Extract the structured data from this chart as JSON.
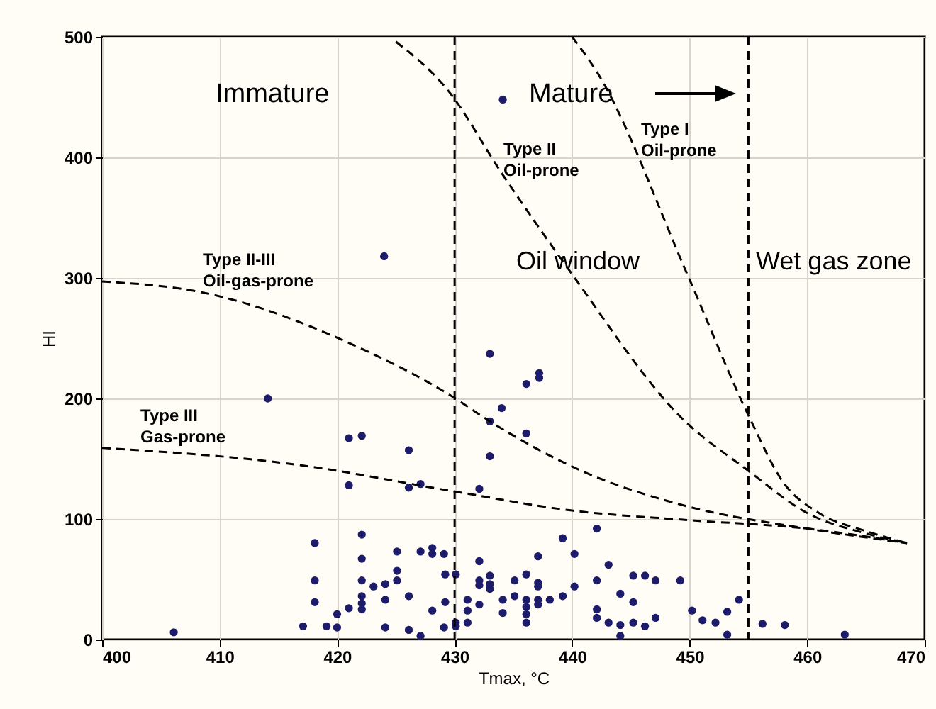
{
  "chart_data": {
    "type": "scatter",
    "xlabel": "Tmax, °C",
    "ylabel": "HI",
    "xlim": [
      400,
      470
    ],
    "ylim": [
      0,
      500
    ],
    "xticks": [
      400,
      410,
      420,
      430,
      440,
      450,
      460,
      470
    ],
    "yticks": [
      0,
      100,
      200,
      300,
      400,
      500
    ],
    "grid": true,
    "series": [
      {
        "type": "scatter",
        "color": "#1c1c6b",
        "marker": "circle",
        "x": [
          406.1,
          414.1,
          424.0,
          434.1,
          433.0,
          436.1,
          437.2,
          437.2,
          434.0,
          433.0,
          436.1,
          421.0,
          422.1,
          426.1,
          433.0,
          421.0,
          426.1,
          427.1,
          432.1,
          417.1,
          418.1,
          418.1,
          418.1,
          419.1,
          420.0,
          420.0,
          421.0,
          422.1,
          422.1,
          422.1,
          422.1,
          422.1,
          422.1,
          423.1,
          424.1,
          424.1,
          424.1,
          425.1,
          425.1,
          425.1,
          426.1,
          426.1,
          427.1,
          427.1,
          428.1,
          428.1,
          428.1,
          429.1,
          429.1,
          429.2,
          429.2,
          430.1,
          430.1,
          430.1,
          431.1,
          431.1,
          431.1,
          432.1,
          432.1,
          432.1,
          432.1,
          433.0,
          433.0,
          433.0,
          434.1,
          434.1,
          435.1,
          435.1,
          436.1,
          436.1,
          436.1,
          436.1,
          436.1,
          437.1,
          437.1,
          437.1,
          437.1,
          437.1,
          438.1,
          439.2,
          439.2,
          440.2,
          440.2,
          442.1,
          443.1,
          442.1,
          445.2,
          446.2,
          447.1,
          449.2,
          444.1,
          445.2,
          442.1,
          442.1,
          443.1,
          444.1,
          444.1,
          445.2,
          446.2,
          447.1,
          450.2,
          451.1,
          452.2,
          453.2,
          453.2,
          454.2,
          456.2,
          458.1,
          463.2
        ],
        "values": [
          6,
          200,
          318,
          448,
          237,
          212,
          221,
          217,
          192,
          181,
          171,
          167,
          169,
          157,
          152,
          128,
          126,
          129,
          125,
          11,
          80,
          49,
          31,
          11,
          21,
          10,
          26,
          87,
          67,
          49,
          36,
          30,
          25,
          44,
          46,
          33,
          10,
          73,
          57,
          49,
          36,
          8,
          3,
          73,
          76,
          71,
          24,
          71,
          10,
          54,
          31,
          54,
          14,
          11,
          33,
          24,
          14,
          65,
          49,
          45,
          29,
          53,
          46,
          42,
          33,
          22,
          49,
          36,
          54,
          33,
          27,
          21,
          14,
          69,
          47,
          44,
          33,
          29,
          33,
          36,
          84,
          71,
          44,
          92,
          62,
          49,
          53,
          53,
          49,
          49,
          38,
          31,
          25,
          18,
          14,
          12,
          3,
          14,
          11,
          18,
          24,
          16,
          14,
          23,
          4,
          33,
          13,
          12,
          4
        ]
      },
      {
        "type": "line",
        "color": "#000000",
        "line_style": "dashed",
        "x": [
          400,
          408.5,
          421.7,
          429.9,
          433,
          440.8,
          450,
          460,
          468.5
        ],
        "values": [
          297,
          288,
          243,
          201,
          181,
          140,
          110,
          92,
          80
        ]
      },
      {
        "type": "line",
        "color": "#000000",
        "line_style": "dashed",
        "x": [
          400,
          416.6,
          429.9,
          440,
          450,
          460,
          468.5
        ],
        "values": [
          159,
          145,
          123,
          107,
          99,
          92,
          80
        ]
      },
      {
        "type": "line",
        "color": "#000000",
        "line_style": "dashed",
        "x": [
          425,
          429.4,
          434,
          440,
          449.3,
          455,
          460,
          465,
          468.5
        ],
        "values": [
          496,
          456,
          387,
          303,
          184,
          140,
          105,
          88,
          80
        ]
      },
      {
        "type": "line",
        "color": "#000000",
        "line_style": "dashed",
        "x": [
          440,
          442.1,
          449.8,
          455.1,
          458,
          461,
          465,
          468.5
        ],
        "values": [
          500,
          471,
          303,
          184,
          130,
          105,
          90,
          80
        ]
      }
    ],
    "ref_lines": [
      {
        "axis": "x",
        "value": 430,
        "line_style": "dashed",
        "color": "#000000"
      },
      {
        "axis": "x",
        "value": 455,
        "line_style": "dashed",
        "color": "#000000"
      }
    ],
    "annotations": [
      "Immature",
      "Mature",
      "Type II\nOil-prone",
      "Type I\nOil-prone",
      "Type II-III\nOil-gas-prone",
      "Type III\nGas-prone",
      "Oil window",
      "Wet gas zone"
    ]
  }
}
